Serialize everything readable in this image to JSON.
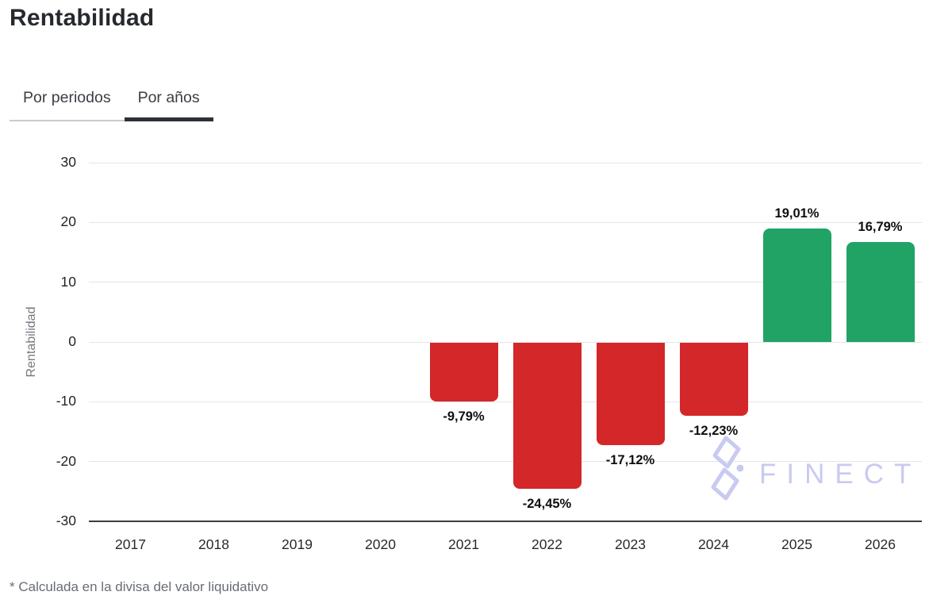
{
  "page": {
    "title": "Rentabilidad",
    "footnote": "* Calculada en la divisa del valor liquidativo"
  },
  "tabs": [
    {
      "label": "Por periodos",
      "active": false
    },
    {
      "label": "Por años",
      "active": true
    }
  ],
  "watermark": {
    "text": "FINECT",
    "color": "#c9caf1"
  },
  "colors": {
    "positive_bar": "#21a366",
    "negative_bar": "#d32729",
    "gridline": "#e5e5e7",
    "axis_line": "#3a3d42",
    "ytick_text": "#212428",
    "xtick_text": "#26292d",
    "value_label_text": "#0d0f11",
    "axis_title_text": "#75797f",
    "title_text": "#26292e",
    "footnote_text": "#686d74",
    "tab_active_underline": "#2d3034",
    "tab_inactive_underline": "#c9cbce"
  },
  "chart_data": {
    "type": "bar",
    "title": "Rentabilidad",
    "xlabel": "",
    "ylabel": "Rentabilidad",
    "ylim": [
      -30,
      30
    ],
    "yticks": [
      30,
      20,
      10,
      0,
      -10,
      -20,
      -30
    ],
    "grid": true,
    "legend": "none",
    "categories": [
      "2017",
      "2018",
      "2019",
      "2020",
      "2021",
      "2022",
      "2023",
      "2024",
      "2025",
      "2026"
    ],
    "values": [
      null,
      null,
      null,
      null,
      -9.79,
      -24.45,
      -17.12,
      -12.23,
      19.01,
      16.79
    ],
    "value_labels": [
      null,
      null,
      null,
      null,
      "-9,79%",
      "-24,45%",
      "-17,12%",
      "-12,23%",
      "19,01%",
      "16,79%"
    ]
  }
}
